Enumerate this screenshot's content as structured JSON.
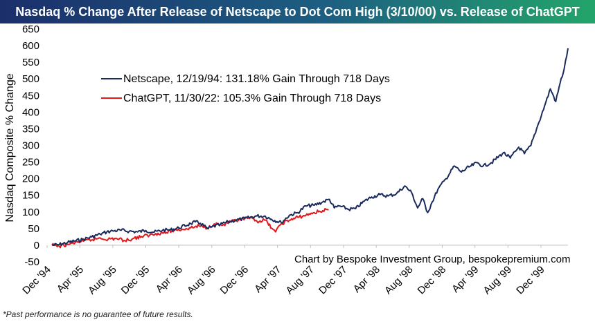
{
  "title": "Nasdaq % Change After Release of Netscape to Dot Com High (3/10/00) vs. Release of ChatGPT",
  "footnote": "*Past performance is no guarantee of future results.",
  "chart_data": {
    "type": "line",
    "ylabel": "Nasdaq Composite % Change",
    "xlabel": "",
    "ylim": [
      -50,
      650
    ],
    "yticks": [
      -50,
      0,
      50,
      100,
      150,
      200,
      250,
      300,
      350,
      400,
      450,
      500,
      550,
      600,
      650
    ],
    "xlim": [
      "1994-12-19",
      "2000-03-10"
    ],
    "xticks": [
      {
        "date": "1994-12-01",
        "label": "Dec '94"
      },
      {
        "date": "1995-04-01",
        "label": "Apr '95"
      },
      {
        "date": "1995-08-01",
        "label": "Aug '95"
      },
      {
        "date": "1995-12-01",
        "label": "Dec '95"
      },
      {
        "date": "1996-04-01",
        "label": "Apr '96"
      },
      {
        "date": "1996-08-01",
        "label": "Aug '96"
      },
      {
        "date": "1996-12-01",
        "label": "Dec '96"
      },
      {
        "date": "1997-04-01",
        "label": "Apr '97"
      },
      {
        "date": "1997-08-01",
        "label": "Aug '97"
      },
      {
        "date": "1997-12-01",
        "label": "Dec '97"
      },
      {
        "date": "1998-04-01",
        "label": "Apr '98"
      },
      {
        "date": "1998-08-01",
        "label": "Aug '98"
      },
      {
        "date": "1998-12-01",
        "label": "Dec '98"
      },
      {
        "date": "1999-04-01",
        "label": "Apr '99"
      },
      {
        "date": "1999-08-01",
        "label": "Aug '99"
      },
      {
        "date": "1999-12-01",
        "label": "Dec '99"
      }
    ],
    "grid": false,
    "legend_position": "top-left",
    "annotation": "Chart by Bespoke Investment Group, bespokepremium.com",
    "series": [
      {
        "name": "Netscape, 12/19/94: 131.18% Gain Through 718 Days",
        "color": "#1b2a5c",
        "points": [
          [
            "1994-12-19",
            0
          ],
          [
            "1995-01-15",
            2
          ],
          [
            "1995-02-15",
            8
          ],
          [
            "1995-03-15",
            13
          ],
          [
            "1995-04-15",
            18
          ],
          [
            "1995-05-15",
            25
          ],
          [
            "1995-06-15",
            33
          ],
          [
            "1995-07-10",
            40
          ],
          [
            "1995-08-01",
            43
          ],
          [
            "1995-09-01",
            45
          ],
          [
            "1995-10-01",
            42
          ],
          [
            "1995-11-01",
            40
          ],
          [
            "1995-12-01",
            44
          ],
          [
            "1996-01-01",
            39
          ],
          [
            "1996-02-01",
            45
          ],
          [
            "1996-03-01",
            46
          ],
          [
            "1996-04-01",
            52
          ],
          [
            "1996-05-15",
            65
          ],
          [
            "1996-06-01",
            70
          ],
          [
            "1996-06-20",
            66
          ],
          [
            "1996-07-15",
            50
          ],
          [
            "1996-08-01",
            55
          ],
          [
            "1996-09-01",
            62
          ],
          [
            "1996-10-01",
            70
          ],
          [
            "1996-11-01",
            76
          ],
          [
            "1996-12-01",
            80
          ],
          [
            "1997-01-15",
            88
          ],
          [
            "1997-02-15",
            87
          ],
          [
            "1997-03-10",
            78
          ],
          [
            "1997-04-15",
            68
          ],
          [
            "1997-05-15",
            90
          ],
          [
            "1997-06-15",
            98
          ],
          [
            "1997-07-15",
            118
          ],
          [
            "1997-08-15",
            120
          ],
          [
            "1997-09-15",
            130
          ],
          [
            "1997-10-10",
            138
          ],
          [
            "1997-10-28",
            112
          ],
          [
            "1997-11-15",
            118
          ],
          [
            "1997-12-20",
            108
          ],
          [
            "1998-01-15",
            110
          ],
          [
            "1998-02-15",
            132
          ],
          [
            "1998-03-15",
            145
          ],
          [
            "1998-04-15",
            152
          ],
          [
            "1998-05-15",
            148
          ],
          [
            "1998-06-15",
            155
          ],
          [
            "1998-07-15",
            178
          ],
          [
            "1998-08-10",
            158
          ],
          [
            "1998-09-01",
            112
          ],
          [
            "1998-09-20",
            140
          ],
          [
            "1998-10-08",
            98
          ],
          [
            "1998-10-25",
            130
          ],
          [
            "1998-11-15",
            168
          ],
          [
            "1998-12-15",
            200
          ],
          [
            "1999-01-15",
            238
          ],
          [
            "1999-02-10",
            220
          ],
          [
            "1999-03-10",
            235
          ],
          [
            "1999-04-10",
            248
          ],
          [
            "1999-05-01",
            238
          ],
          [
            "1999-06-01",
            248
          ],
          [
            "1999-07-15",
            278
          ],
          [
            "1999-08-10",
            262
          ],
          [
            "1999-09-10",
            295
          ],
          [
            "1999-10-01",
            275
          ],
          [
            "1999-10-25",
            300
          ],
          [
            "1999-11-15",
            350
          ],
          [
            "1999-12-15",
            420
          ],
          [
            "2000-01-05",
            470
          ],
          [
            "2000-01-25",
            432
          ],
          [
            "2000-02-10",
            488
          ],
          [
            "2000-02-25",
            530
          ],
          [
            "2000-03-10",
            592
          ]
        ]
      },
      {
        "name": "ChatGPT, 11/30/22: 105.3% Gain Through 718 Days",
        "color": "#e0191d",
        "points": [
          [
            "1994-12-19",
            0
          ],
          [
            "1995-01-15",
            -3
          ],
          [
            "1995-02-15",
            2
          ],
          [
            "1995-03-15",
            8
          ],
          [
            "1995-04-15",
            12
          ],
          [
            "1995-05-15",
            16
          ],
          [
            "1995-06-15",
            22
          ],
          [
            "1995-07-15",
            18
          ],
          [
            "1995-08-15",
            20
          ],
          [
            "1995-09-15",
            14
          ],
          [
            "1995-10-15",
            20
          ],
          [
            "1995-11-15",
            26
          ],
          [
            "1995-12-15",
            30
          ],
          [
            "1996-01-15",
            36
          ],
          [
            "1996-02-15",
            38
          ],
          [
            "1996-03-15",
            45
          ],
          [
            "1996-04-15",
            48
          ],
          [
            "1996-05-15",
            52
          ],
          [
            "1996-06-15",
            58
          ],
          [
            "1996-07-15",
            52
          ],
          [
            "1996-08-10",
            64
          ],
          [
            "1996-09-10",
            60
          ],
          [
            "1996-10-10",
            70
          ],
          [
            "1996-11-15",
            76
          ],
          [
            "1996-12-15",
            82
          ],
          [
            "1997-01-15",
            72
          ],
          [
            "1997-02-15",
            75
          ],
          [
            "1997-03-15",
            48
          ],
          [
            "1997-03-25",
            40
          ],
          [
            "1997-04-15",
            65
          ],
          [
            "1997-05-15",
            75
          ],
          [
            "1997-06-15",
            84
          ],
          [
            "1997-07-15",
            90
          ],
          [
            "1997-08-15",
            98
          ],
          [
            "1997-09-15",
            104
          ],
          [
            "1997-10-07",
            106
          ]
        ]
      }
    ]
  }
}
